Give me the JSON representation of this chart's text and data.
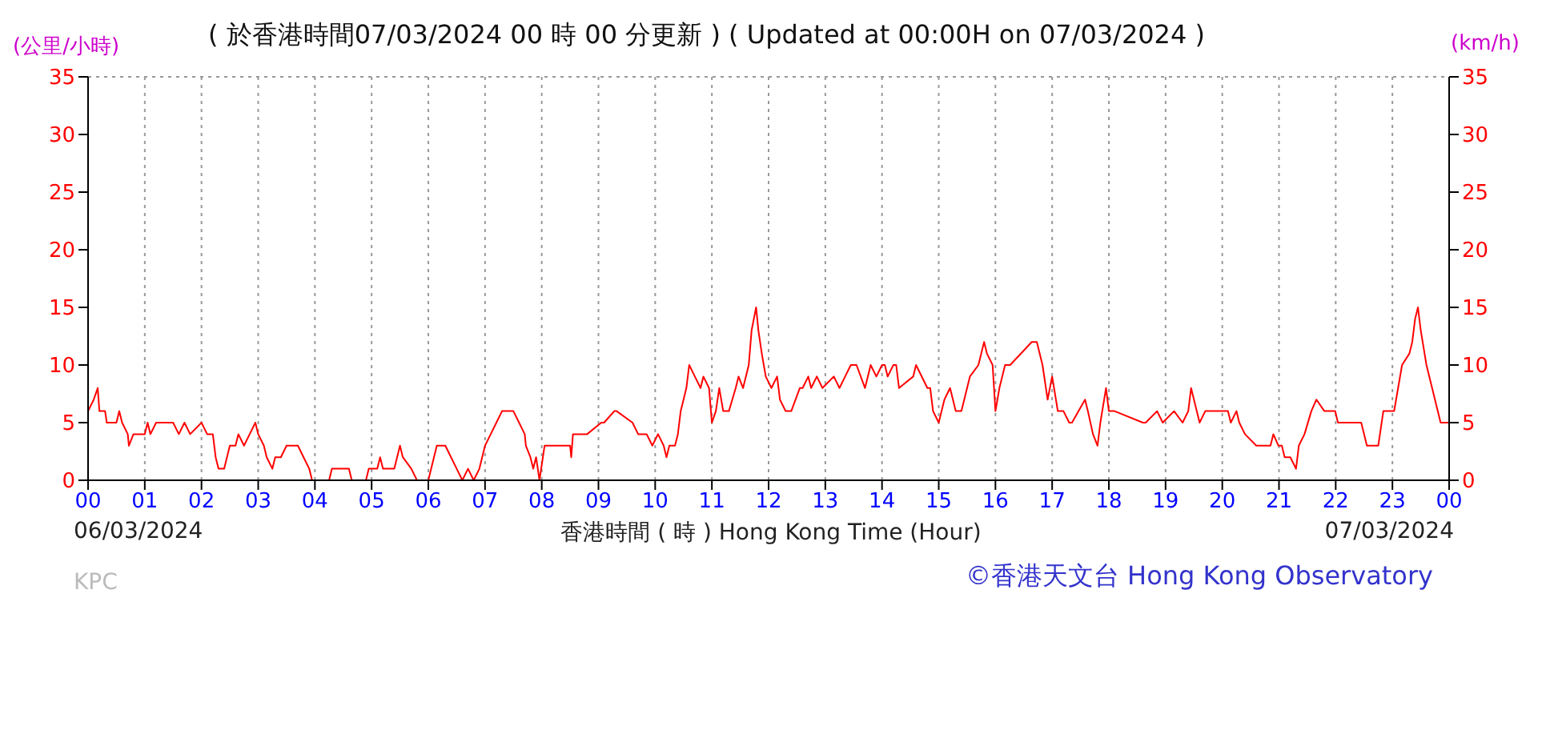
{
  "chart_data": {
    "type": "line",
    "title": "( 於香港時間07/03/2024 00 時 00 分更新 ) ( Updated at 00:00H on 07/03/2024 )",
    "xlabel": "香港時間 ( 時 ) Hong Kong Time (Hour)",
    "ylabel": "(公里/小時)",
    "y2label": "(km/h)",
    "annotations": [
      "06/03/2024",
      "07/03/2024",
      "KPC",
      "©香港天文台 Hong Kong Observatory"
    ],
    "x": [
      0,
      0.1,
      0.17,
      0.2,
      0.3,
      0.33,
      0.5,
      0.55,
      0.6,
      0.7,
      0.72,
      0.8,
      1.0,
      1.05,
      1.1,
      1.2,
      1.5,
      1.6,
      1.7,
      1.8,
      2.0,
      2.1,
      2.2,
      2.25,
      2.3,
      2.4,
      2.5,
      2.6,
      2.65,
      2.75,
      2.85,
      2.95,
      3.0,
      3.1,
      3.15,
      3.25,
      3.3,
      3.4,
      3.5,
      3.7,
      3.8,
      3.9,
      3.95,
      4.25,
      4.3,
      4.6,
      4.65,
      4.9,
      4.95,
      5.1,
      5.15,
      5.2,
      5.4,
      5.5,
      5.55,
      5.7,
      5.8,
      6.0,
      6.05,
      6.15,
      6.3,
      6.4,
      6.5,
      6.6,
      6.7,
      6.8,
      6.9,
      7.0,
      7.1,
      7.2,
      7.3,
      7.5,
      7.6,
      7.7,
      7.72,
      7.8,
      7.85,
      7.9,
      7.96,
      8.05,
      8.5,
      8.52,
      8.55,
      8.8,
      9.05,
      9.1,
      9.28,
      9.32,
      9.6,
      9.7,
      9.85,
      9.95,
      10.05,
      10.15,
      10.2,
      10.25,
      10.35,
      10.4,
      10.45,
      10.55,
      10.6,
      10.7,
      10.8,
      10.85,
      10.95,
      11.0,
      11.07,
      11.13,
      11.2,
      11.3,
      11.42,
      11.47,
      11.55,
      11.65,
      11.7,
      11.78,
      11.82,
      11.88,
      11.95,
      12.05,
      12.15,
      12.2,
      12.3,
      12.4,
      12.55,
      12.6,
      12.7,
      12.75,
      12.85,
      12.95,
      13.15,
      13.25,
      13.35,
      13.45,
      13.55,
      13.7,
      13.8,
      13.9,
      14.0,
      14.05,
      14.1,
      14.2,
      14.25,
      14.3,
      14.55,
      14.6,
      14.8,
      14.85,
      14.9,
      15.0,
      15.1,
      15.2,
      15.3,
      15.4,
      15.5,
      15.55,
      15.7,
      15.8,
      15.85,
      15.95,
      16.0,
      16.07,
      16.17,
      16.26,
      16.64,
      16.73,
      16.83,
      16.92,
      17.0,
      17.1,
      17.2,
      17.3,
      17.35,
      17.58,
      17.63,
      17.72,
      17.8,
      17.85,
      17.95,
      18.0,
      18.1,
      18.6,
      18.65,
      18.85,
      18.95,
      19.15,
      19.3,
      19.4,
      19.45,
      19.55,
      19.6,
      19.7,
      20.1,
      20.15,
      20.25,
      20.3,
      20.4,
      20.6,
      20.85,
      20.9,
      20.99,
      21.05,
      21.1,
      21.2,
      21.3,
      21.35,
      21.45,
      21.57,
      21.66,
      21.8,
      21.99,
      22.04,
      22.45,
      22.55,
      22.75,
      22.84,
      23.03,
      23.17,
      23.3,
      23.35,
      23.4,
      23.45,
      23.5,
      23.6,
      23.7,
      23.8,
      23.85,
      24.0
    ],
    "values": [
      6,
      7,
      8,
      6,
      6,
      5,
      5,
      6,
      5,
      4,
      3,
      4,
      4,
      5,
      4,
      5,
      5,
      4,
      5,
      4,
      5,
      4,
      4,
      2,
      1,
      1,
      3,
      3,
      4,
      3,
      4,
      5,
      4,
      3,
      2,
      1,
      2,
      2,
      3,
      3,
      2,
      1,
      0,
      0,
      1,
      1,
      0,
      0,
      1,
      1,
      2,
      1,
      1,
      3,
      2,
      1,
      0,
      0,
      1,
      3,
      3,
      2,
      1,
      0,
      1,
      0,
      1,
      3,
      4,
      5,
      6,
      6,
      5,
      4,
      3,
      2,
      1,
      2,
      0,
      3,
      3,
      2,
      4,
      4,
      5,
      5,
      6,
      6,
      5,
      4,
      4,
      3,
      4,
      3,
      2,
      3,
      3,
      4,
      6,
      8,
      10,
      9,
      8,
      9,
      8,
      5,
      6,
      8,
      6,
      6,
      8,
      9,
      8,
      10,
      13,
      15,
      13,
      11,
      9,
      8,
      9,
      7,
      6,
      6,
      8,
      8,
      9,
      8,
      9,
      8,
      9,
      8,
      9,
      10,
      10,
      8,
      10,
      9,
      10,
      10,
      9,
      10,
      10,
      8,
      9,
      10,
      8,
      8,
      6,
      5,
      7,
      8,
      6,
      6,
      8,
      9,
      10,
      12,
      11,
      10,
      6,
      8,
      10,
      10,
      12,
      12,
      10,
      7,
      9,
      6,
      6,
      5,
      5,
      7,
      6,
      4,
      3,
      5,
      8,
      6,
      6,
      5,
      5,
      6,
      5,
      6,
      5,
      6,
      8,
      6,
      5,
      6,
      6,
      5,
      6,
      5,
      4,
      3,
      3,
      4,
      3,
      3,
      2,
      2,
      1,
      3,
      4,
      6,
      7,
      6,
      6,
      5,
      5,
      3,
      3,
      6,
      6,
      10,
      11,
      12,
      14,
      15,
      13,
      10,
      8,
      6,
      5,
      5
    ],
    "color": "#ff0000",
    "xlim": [
      0,
      24
    ],
    "xticks": [
      {
        "value": 0,
        "label": "00"
      },
      {
        "value": 1,
        "label": "01"
      },
      {
        "value": 2,
        "label": "02"
      },
      {
        "value": 3,
        "label": "03"
      },
      {
        "value": 4,
        "label": "04"
      },
      {
        "value": 5,
        "label": "05"
      },
      {
        "value": 6,
        "label": "06"
      },
      {
        "value": 7,
        "label": "07"
      },
      {
        "value": 8,
        "label": "08"
      },
      {
        "value": 9,
        "label": "09"
      },
      {
        "value": 10,
        "label": "10"
      },
      {
        "value": 11,
        "label": "11"
      },
      {
        "value": 12,
        "label": "12"
      },
      {
        "value": 13,
        "label": "13"
      },
      {
        "value": 14,
        "label": "14"
      },
      {
        "value": 15,
        "label": "15"
      },
      {
        "value": 16,
        "label": "16"
      },
      {
        "value": 17,
        "label": "17"
      },
      {
        "value": 18,
        "label": "18"
      },
      {
        "value": 19,
        "label": "19"
      },
      {
        "value": 20,
        "label": "20"
      },
      {
        "value": 21,
        "label": "21"
      },
      {
        "value": 22,
        "label": "22"
      },
      {
        "value": 23,
        "label": "23"
      },
      {
        "value": 24,
        "label": "00"
      }
    ],
    "ylim": [
      0,
      35
    ],
    "yticks": [
      0,
      5,
      10,
      15,
      20,
      25,
      30,
      35
    ],
    "y2lim": [
      0,
      35
    ],
    "y2ticks": [
      0,
      5,
      10,
      15,
      20,
      25,
      30,
      35
    ],
    "grid": true
  }
}
